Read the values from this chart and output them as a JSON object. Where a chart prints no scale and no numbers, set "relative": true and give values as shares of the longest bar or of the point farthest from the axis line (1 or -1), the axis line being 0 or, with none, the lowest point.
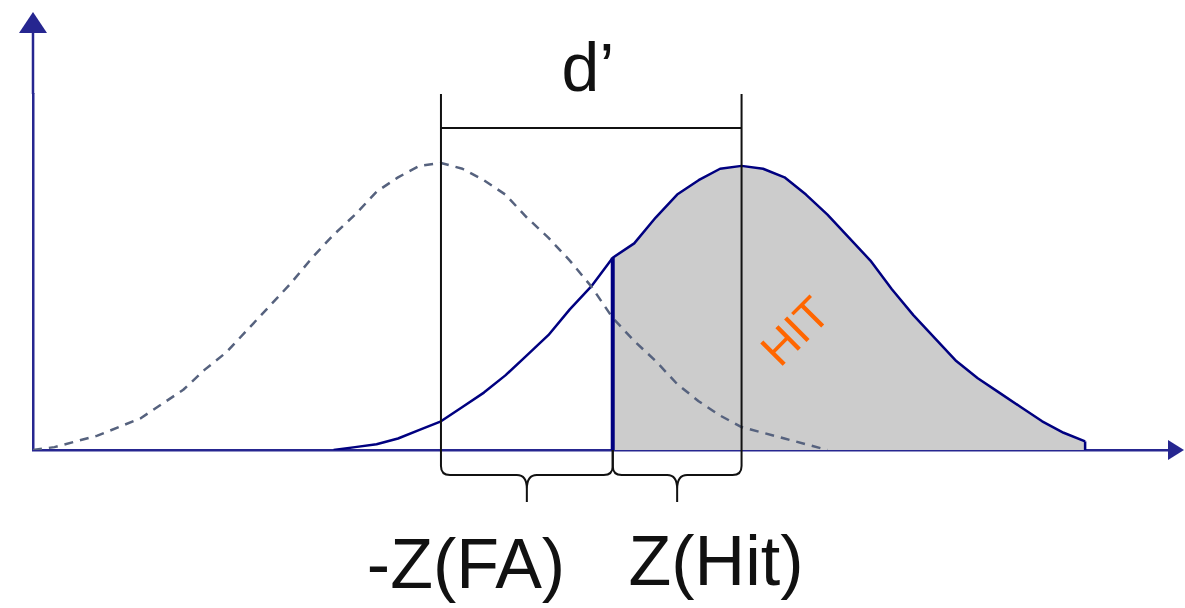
{
  "chart_data": {
    "type": "line",
    "relative": true,
    "marker": "none",
    "tick_labels": false,
    "categories": [
      null,
      null,
      null,
      null,
      null,
      null,
      null,
      null,
      null,
      null,
      null,
      null,
      null,
      null,
      null,
      null,
      null,
      null,
      null,
      null,
      null,
      null,
      null,
      null,
      null,
      null,
      null,
      null,
      null,
      null,
      null,
      null,
      null,
      null,
      null,
      null,
      null,
      null,
      null,
      null,
      null,
      null,
      null,
      null,
      null,
      null,
      null,
      null,
      null,
      null,
      null,
      null,
      null,
      null
    ],
    "series": [
      {
        "color": "#56627e",
        "line_style": "dashed",
        "values": [
          0,
          0.01,
          0.03,
          0.05,
          0.08,
          0.11,
          0.16,
          0.21,
          0.28,
          0.34,
          0.42,
          0.5,
          0.58,
          0.67,
          0.75,
          0.82,
          0.9,
          0.95,
          0.99,
          1,
          0.98,
          0.94,
          0.89,
          0.81,
          0.74,
          0.66,
          0.57,
          0.46,
          0.38,
          0.31,
          0.23,
          0.17,
          0.12,
          0.08,
          0.06,
          0.04,
          0.02,
          0,
          null,
          null,
          null,
          null,
          null,
          null,
          null,
          null,
          null,
          null,
          null,
          null,
          null,
          null,
          null,
          null
        ]
      },
      {
        "color": "#000080",
        "values": [
          null,
          null,
          null,
          null,
          null,
          null,
          null,
          null,
          null,
          null,
          null,
          null,
          null,
          null,
          0,
          0.01,
          0.02,
          0.04,
          0.07,
          0.1,
          0.15,
          0.2,
          0.26,
          0.33,
          0.4,
          0.49,
          0.57,
          0.67,
          0.72,
          0.81,
          0.89,
          0.94,
          0.98,
          0.99,
          0.98,
          0.95,
          0.89,
          0.82,
          0.74,
          0.66,
          0.56,
          0.47,
          0.39,
          0.31,
          0.25,
          0.2,
          0.15,
          0.1,
          0.06,
          0.03,
          null,
          null,
          null,
          null
        ]
      },
      {
        "type": "area",
        "name": "HIT",
        "color": "#cccccc",
        "values": [
          null,
          null,
          null,
          null,
          null,
          null,
          null,
          null,
          null,
          null,
          null,
          null,
          null,
          null,
          null,
          null,
          null,
          null,
          null,
          null,
          null,
          null,
          null,
          null,
          null,
          null,
          null,
          0.67,
          0.72,
          0.81,
          0.89,
          0.94,
          0.98,
          0.99,
          0.98,
          0.95,
          0.89,
          0.82,
          0.74,
          0.66,
          0.56,
          0.47,
          0.39,
          0.31,
          0.25,
          0.2,
          0.15,
          0.1,
          0.06,
          0.03,
          null,
          null,
          null,
          null
        ]
      }
    ],
    "annotations": [
      "d’",
      "-Z(FA)",
      "Z(Hit)"
    ]
  }
}
